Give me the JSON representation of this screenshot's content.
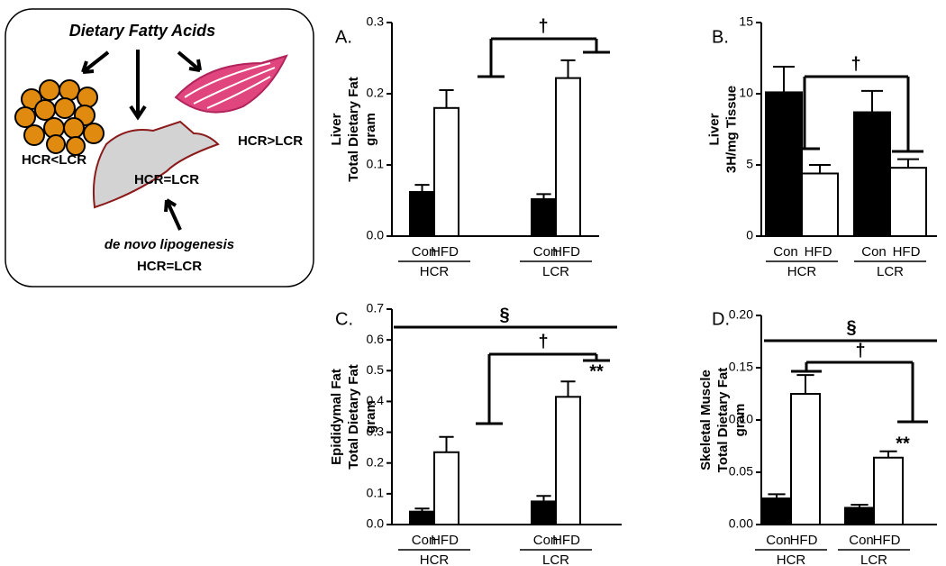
{
  "diagram": {
    "title": "Dietary Fatty Acids",
    "adipose": "HCR<LCR",
    "muscle": "HCR>LCR",
    "liver": "HCR=LCR",
    "lipogenesis": "de novo lipogenesis",
    "lipogenesis_result": "HCR=LCR"
  },
  "chart_data": [
    {
      "type": "bar",
      "panel": "A.",
      "ylabel": [
        "Liver",
        "Total Dietary Fat",
        "gram"
      ],
      "groups": [
        "HCR",
        "LCR"
      ],
      "series": [
        {
          "name": "Con",
          "color": "#000000",
          "values": [
            0.062,
            0.052
          ],
          "errors": [
            0.01,
            0.007
          ]
        },
        {
          "name": "HFD",
          "color": "#ffffff",
          "values": [
            0.18,
            0.222
          ],
          "errors": [
            0.025,
            0.025
          ]
        }
      ],
      "ylim": [
        0,
        0.3
      ],
      "yticks": [
        {
          "value": 0,
          "label": "0.0"
        },
        0.1,
        0.2,
        0.3
      ],
      "annotations": [
        "†"
      ]
    },
    {
      "type": "bar",
      "panel": "B.",
      "ylabel": [
        "Liver",
        "3H/mg Tissue"
      ],
      "groups": [
        "HCR",
        "LCR"
      ],
      "series": [
        {
          "name": "Con",
          "color": "#000000",
          "values": [
            10.1,
            8.7
          ],
          "errors": [
            1.8,
            1.5
          ]
        },
        {
          "name": "HFD",
          "color": "#ffffff",
          "values": [
            4.4,
            4.8
          ],
          "errors": [
            0.6,
            0.6
          ]
        }
      ],
      "ylim": [
        0,
        15
      ],
      "yticks": [
        0,
        5,
        10,
        15
      ],
      "annotations": [
        "†"
      ]
    },
    {
      "type": "bar",
      "panel": "C.",
      "ylabel": [
        "Epididymal Fat",
        "Total Dietary Fat",
        "gram"
      ],
      "groups": [
        "HCR",
        "LCR"
      ],
      "series": [
        {
          "name": "Con",
          "color": "#000000",
          "values": [
            0.042,
            0.075
          ],
          "errors": [
            0.01,
            0.018
          ]
        },
        {
          "name": "HFD",
          "color": "#ffffff",
          "values": [
            0.235,
            0.415
          ],
          "errors": [
            0.05,
            0.05
          ]
        }
      ],
      "ylim": [
        0,
        0.7
      ],
      "yticks": [
        {
          "value": 0,
          "label": "0.0"
        },
        0.1,
        0.2,
        0.3,
        0.4,
        0.5,
        0.6,
        0.7
      ],
      "annotations": [
        "§",
        "†",
        "**"
      ]
    },
    {
      "type": "bar",
      "panel": "D.",
      "ylabel": [
        "Skeletal Muscle",
        "Total Dietary Fat",
        "gram"
      ],
      "groups": [
        "HCR",
        "LCR"
      ],
      "series": [
        {
          "name": "Con",
          "color": "#000000",
          "values": [
            0.025,
            0.016
          ],
          "errors": [
            0.004,
            0.003
          ]
        },
        {
          "name": "HFD",
          "color": "#ffffff",
          "values": [
            0.125,
            0.064
          ],
          "errors": [
            0.018,
            0.006
          ]
        }
      ],
      "ylim": [
        0,
        0.2
      ],
      "yticks": [
        {
          "value": 0,
          "label": "0.00"
        },
        0.05,
        {
          "value": 0.1,
          "label": "0.10"
        },
        0.15,
        {
          "value": 0.2,
          "label": "0.20"
        }
      ],
      "annotations": [
        "§",
        "†",
        "**"
      ]
    }
  ]
}
